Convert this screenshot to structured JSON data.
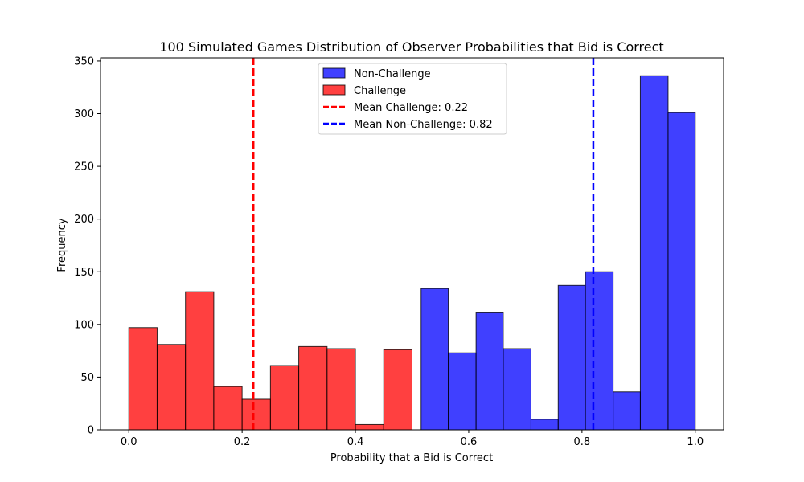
{
  "chart_data": {
    "type": "bar",
    "title": "100 Simulated Games Distribution of Observer Probabilities that Bid is Correct",
    "xlabel": "Probability that a Bid is Correct",
    "ylabel": "Frequency",
    "xlim": [
      -0.05,
      1.05
    ],
    "ylim": [
      0,
      353
    ],
    "xticks": [
      "0.0",
      "0.2",
      "0.4",
      "0.6",
      "0.8",
      "1.0"
    ],
    "xtick_values": [
      0.0,
      0.2,
      0.4,
      0.6,
      0.8,
      1.0
    ],
    "yticks": [
      "0",
      "50",
      "100",
      "150",
      "200",
      "250",
      "300",
      "350"
    ],
    "ytick_values": [
      0,
      50,
      100,
      150,
      200,
      250,
      300,
      350
    ],
    "grid": false,
    "legend_position": "top-center",
    "series": [
      {
        "name": "Non-Challenge",
        "color": "#0000ff",
        "bins": [
          {
            "x0": 0.516,
            "x1": 0.564,
            "value": 134
          },
          {
            "x0": 0.564,
            "x1": 0.613,
            "value": 73
          },
          {
            "x0": 0.613,
            "x1": 0.661,
            "value": 111
          },
          {
            "x0": 0.661,
            "x1": 0.71,
            "value": 77
          },
          {
            "x0": 0.71,
            "x1": 0.758,
            "value": 10
          },
          {
            "x0": 0.758,
            "x1": 0.806,
            "value": 137
          },
          {
            "x0": 0.806,
            "x1": 0.855,
            "value": 150
          },
          {
            "x0": 0.855,
            "x1": 0.903,
            "value": 36
          },
          {
            "x0": 0.903,
            "x1": 0.952,
            "value": 336
          },
          {
            "x0": 0.952,
            "x1": 1.0,
            "value": 301
          }
        ]
      },
      {
        "name": "Challenge",
        "color": "#ff0000",
        "bins": [
          {
            "x0": 0.0,
            "x1": 0.05,
            "value": 97
          },
          {
            "x0": 0.05,
            "x1": 0.1,
            "value": 81
          },
          {
            "x0": 0.1,
            "x1": 0.15,
            "value": 131
          },
          {
            "x0": 0.15,
            "x1": 0.2,
            "value": 41
          },
          {
            "x0": 0.2,
            "x1": 0.25,
            "value": 29
          },
          {
            "x0": 0.25,
            "x1": 0.3,
            "value": 61
          },
          {
            "x0": 0.3,
            "x1": 0.35,
            "value": 79
          },
          {
            "x0": 0.35,
            "x1": 0.4,
            "value": 77
          },
          {
            "x0": 0.4,
            "x1": 0.45,
            "value": 5
          },
          {
            "x0": 0.45,
            "x1": 0.5,
            "value": 76
          }
        ]
      }
    ],
    "reference_lines": [
      {
        "name": "Mean Challenge: 0.22",
        "x": 0.22,
        "color": "#ff0000",
        "style": "dashed"
      },
      {
        "name": "Mean Non-Challenge: 0.82",
        "x": 0.82,
        "color": "#0000ff",
        "style": "dashed"
      }
    ],
    "legend": [
      {
        "label": "Non-Challenge",
        "kind": "patch",
        "color": "#0000ff"
      },
      {
        "label": "Challenge",
        "kind": "patch",
        "color": "#ff0000"
      },
      {
        "label": "Mean Challenge: 0.22",
        "kind": "dashed-line",
        "color": "#ff0000"
      },
      {
        "label": "Mean Non-Challenge: 0.82",
        "kind": "dashed-line",
        "color": "#0000ff"
      }
    ]
  }
}
